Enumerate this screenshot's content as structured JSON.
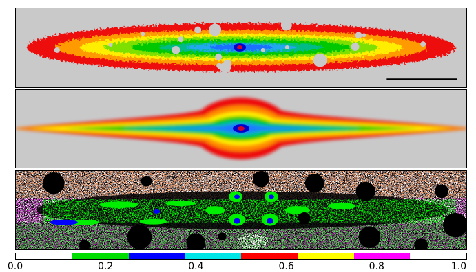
{
  "colorbar": {
    "colors": [
      "#ffffff",
      "#00dd00",
      "#0000ff",
      "#00e5e5",
      "#ff0000",
      "#ffff00",
      "#ff00ff",
      "#ffffff"
    ],
    "range": [
      0.0,
      1.0
    ],
    "ticks": [
      "0.0",
      "0.2",
      "0.4",
      "0.6",
      "0.8",
      "1.0"
    ]
  },
  "panels": [
    "observed-galaxy-image",
    "galaxy-model-image",
    "residual-map"
  ]
}
